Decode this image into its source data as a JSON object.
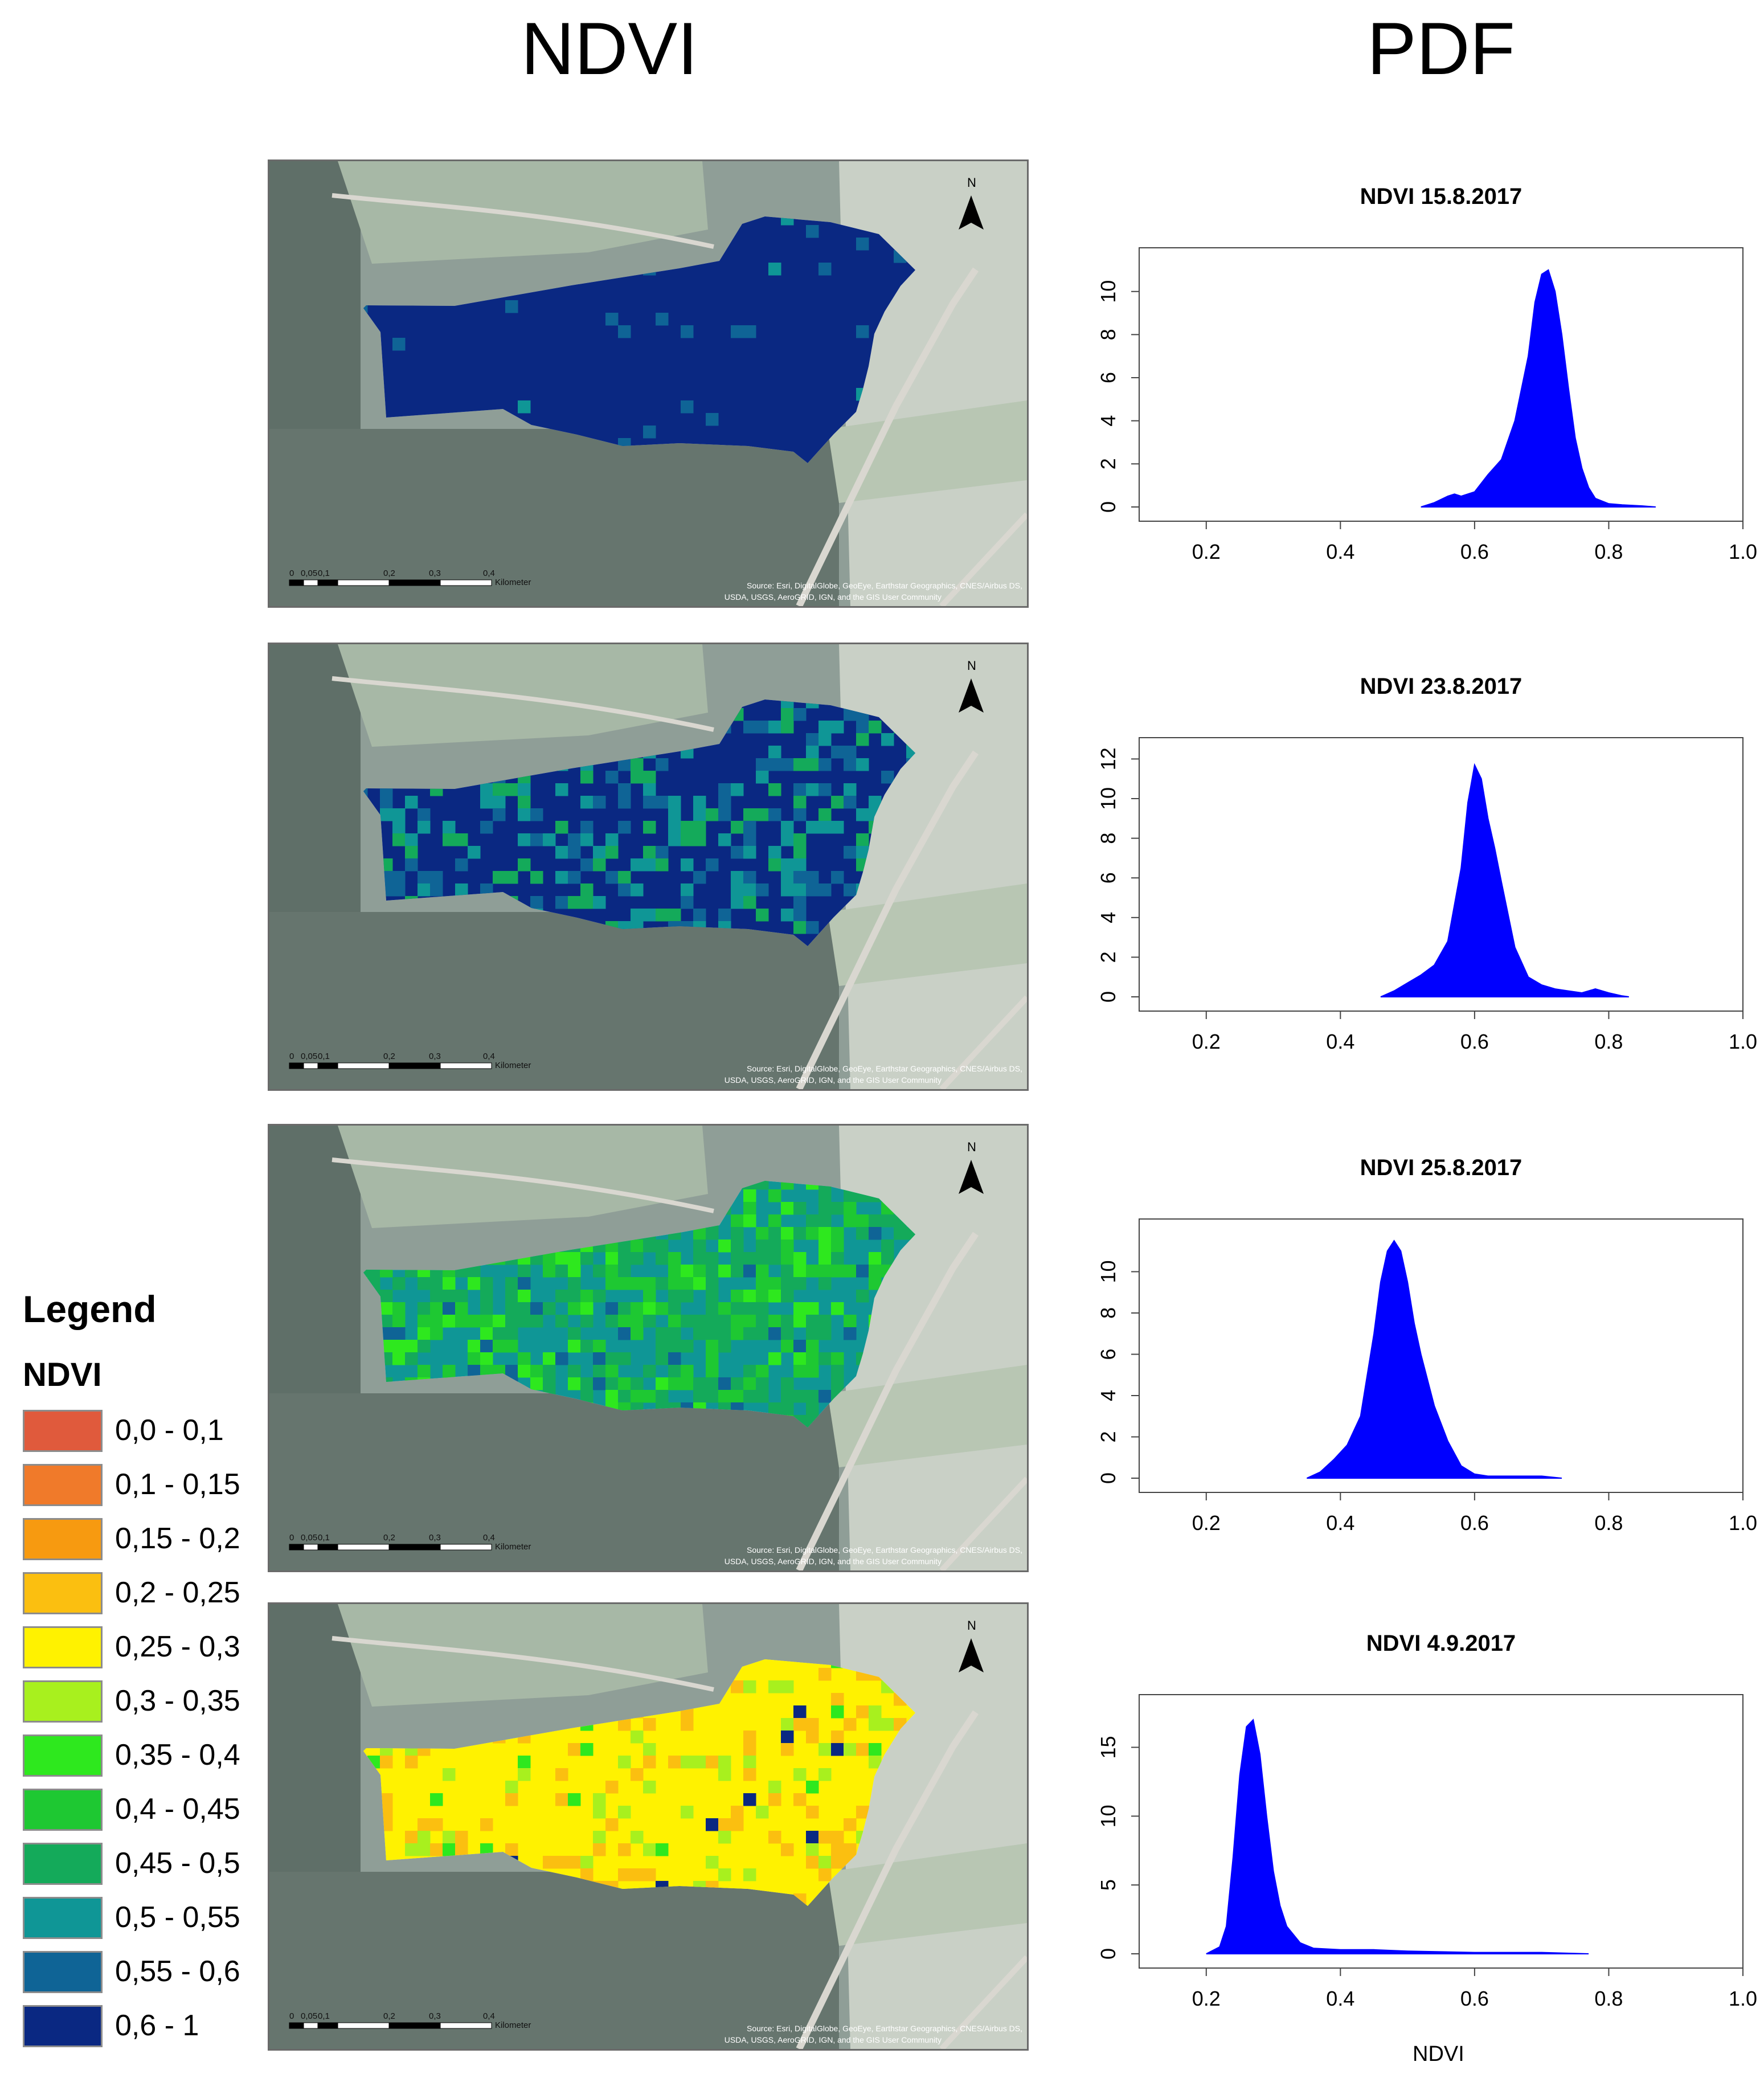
{
  "headers": {
    "left": "NDVI",
    "right": "PDF"
  },
  "legend": {
    "title": "Legend",
    "subtitle": "NDVI",
    "classes": [
      {
        "label": "0,0 - 0,1",
        "color": "#e05a3c"
      },
      {
        "label": "0,1 - 0,15",
        "color": "#f07a2a"
      },
      {
        "label": "0,15 - 0,2",
        "color": "#f79a10"
      },
      {
        "label": "0,2 - 0,25",
        "color": "#fbbf10"
      },
      {
        "label": "0,25 - 0,3",
        "color": "#fff200"
      },
      {
        "label": "0,3 - 0,35",
        "color": "#a8f01e"
      },
      {
        "label": "0,35 - 0,4",
        "color": "#2ee81e"
      },
      {
        "label": "0,4 - 0,45",
        "color": "#1ec832"
      },
      {
        "label": "0,45 - 0,5",
        "color": "#14aa5a"
      },
      {
        "label": "0,5 - 0,55",
        "color": "#0f9696"
      },
      {
        "label": "0,55 - 0,6",
        "color": "#0f6496"
      },
      {
        "label": "0,6 - 1",
        "color": "#0a2882"
      }
    ]
  },
  "map_common": {
    "north_label": "N",
    "scale_ticks": [
      "0",
      "0,05",
      "0,1",
      "0,2",
      "0,3",
      "0,4"
    ],
    "scale_unit": "Kilometer",
    "credit_line1": "Source: Esri, DigitalGlobe, GeoEye, Earthstar Geographics, CNES/Airbus DS,",
    "credit_line2": "USDA, USGS, AeroGRID, IGN, and the GIS User Community"
  },
  "chart_data": [
    {
      "type": "area",
      "title": "NDVI 15.8.2017",
      "xlabel": "",
      "ylabel": "",
      "xlim": [
        0.1,
        1.0
      ],
      "ylim": [
        0,
        11.5
      ],
      "xticks": [
        "0.2",
        "0.4",
        "0.6",
        "0.8",
        "1.0"
      ],
      "yticks": [
        "0",
        "2",
        "4",
        "6",
        "8",
        "10"
      ],
      "fill": "#0000ff",
      "x": [
        0.52,
        0.54,
        0.56,
        0.57,
        0.58,
        0.6,
        0.62,
        0.64,
        0.66,
        0.68,
        0.69,
        0.7,
        0.71,
        0.72,
        0.73,
        0.74,
        0.75,
        0.76,
        0.77,
        0.78,
        0.8,
        0.82,
        0.85,
        0.87
      ],
      "y": [
        0,
        0.2,
        0.5,
        0.6,
        0.5,
        0.7,
        1.5,
        2.2,
        4.0,
        7.0,
        9.5,
        10.8,
        11.0,
        10.0,
        8.0,
        5.5,
        3.2,
        1.8,
        0.9,
        0.4,
        0.15,
        0.1,
        0.05,
        0
      ]
    },
    {
      "type": "area",
      "title": "NDVI 23.8.2017",
      "xlabel": "",
      "ylabel": "",
      "xlim": [
        0.1,
        1.0
      ],
      "ylim": [
        0,
        12.5
      ],
      "xticks": [
        "0.2",
        "0.4",
        "0.6",
        "0.8",
        "1.0"
      ],
      "yticks": [
        "0",
        "2",
        "4",
        "6",
        "8",
        "10",
        "12"
      ],
      "fill": "#0000ff",
      "x": [
        0.46,
        0.48,
        0.5,
        0.52,
        0.54,
        0.56,
        0.58,
        0.59,
        0.6,
        0.61,
        0.62,
        0.63,
        0.64,
        0.66,
        0.68,
        0.7,
        0.72,
        0.74,
        0.76,
        0.78,
        0.8,
        0.82,
        0.83
      ],
      "y": [
        0,
        0.3,
        0.7,
        1.1,
        1.6,
        2.8,
        6.5,
        9.8,
        11.7,
        11.0,
        9.0,
        7.5,
        5.8,
        2.5,
        1.0,
        0.6,
        0.4,
        0.3,
        0.2,
        0.4,
        0.2,
        0.05,
        0
      ]
    },
    {
      "type": "area",
      "title": "NDVI 25.8.2017",
      "xlabel": "",
      "ylabel": "",
      "xlim": [
        0.1,
        1.0
      ],
      "ylim": [
        0,
        12
      ],
      "xticks": [
        "0.2",
        "0.4",
        "0.6",
        "0.8",
        "1.0"
      ],
      "yticks": [
        "0",
        "2",
        "4",
        "6",
        "8",
        "10"
      ],
      "fill": "#0000ff",
      "x": [
        0.35,
        0.37,
        0.39,
        0.41,
        0.43,
        0.45,
        0.46,
        0.47,
        0.48,
        0.49,
        0.5,
        0.51,
        0.52,
        0.54,
        0.56,
        0.58,
        0.6,
        0.62,
        0.66,
        0.7,
        0.73
      ],
      "y": [
        0,
        0.3,
        0.9,
        1.6,
        3.0,
        7.0,
        9.5,
        11.0,
        11.5,
        11.0,
        9.5,
        7.5,
        6.0,
        3.5,
        1.8,
        0.6,
        0.2,
        0.1,
        0.1,
        0.1,
        0
      ]
    },
    {
      "type": "area",
      "title": "NDVI 4.9.2017",
      "xlabel": "NDVI",
      "ylabel": "",
      "xlim": [
        0.1,
        1.0
      ],
      "ylim": [
        0,
        18
      ],
      "xticks": [
        "0.2",
        "0.4",
        "0.6",
        "0.8",
        "1.0"
      ],
      "yticks": [
        "0",
        "5",
        "10",
        "15"
      ],
      "fill": "#0000ff",
      "x": [
        0.2,
        0.22,
        0.23,
        0.24,
        0.25,
        0.26,
        0.27,
        0.28,
        0.29,
        0.3,
        0.31,
        0.32,
        0.34,
        0.36,
        0.4,
        0.45,
        0.5,
        0.6,
        0.7,
        0.77
      ],
      "y": [
        0,
        0.5,
        2.0,
        7.0,
        13.0,
        16.5,
        17.0,
        14.5,
        10.0,
        6.0,
        3.5,
        2.0,
        0.8,
        0.4,
        0.3,
        0.3,
        0.2,
        0.1,
        0.1,
        0
      ]
    }
  ],
  "maps": [
    {
      "class_counts": {
        "0,6 - 1": 96,
        "0,55 - 0,6": 2,
        "0,5 - 0,55": 2
      }
    },
    {
      "class_counts": {
        "0,6 - 1": 60,
        "0,55 - 0,6": 15,
        "0,5 - 0,55": 15,
        "0,45 - 0,5": 10
      }
    },
    {
      "class_counts": {
        "0,5 - 0,55": 40,
        "0,45 - 0,5": 30,
        "0,4 - 0,45": 15,
        "0,35 - 0,4": 10,
        "0,55 - 0,6": 5
      }
    },
    {
      "class_counts": {
        "0,25 - 0,3": 72,
        "0,2 - 0,25": 14,
        "0,3 - 0,35": 10,
        "0,35 - 0,4": 2,
        "0,6 - 1": 2
      }
    }
  ]
}
